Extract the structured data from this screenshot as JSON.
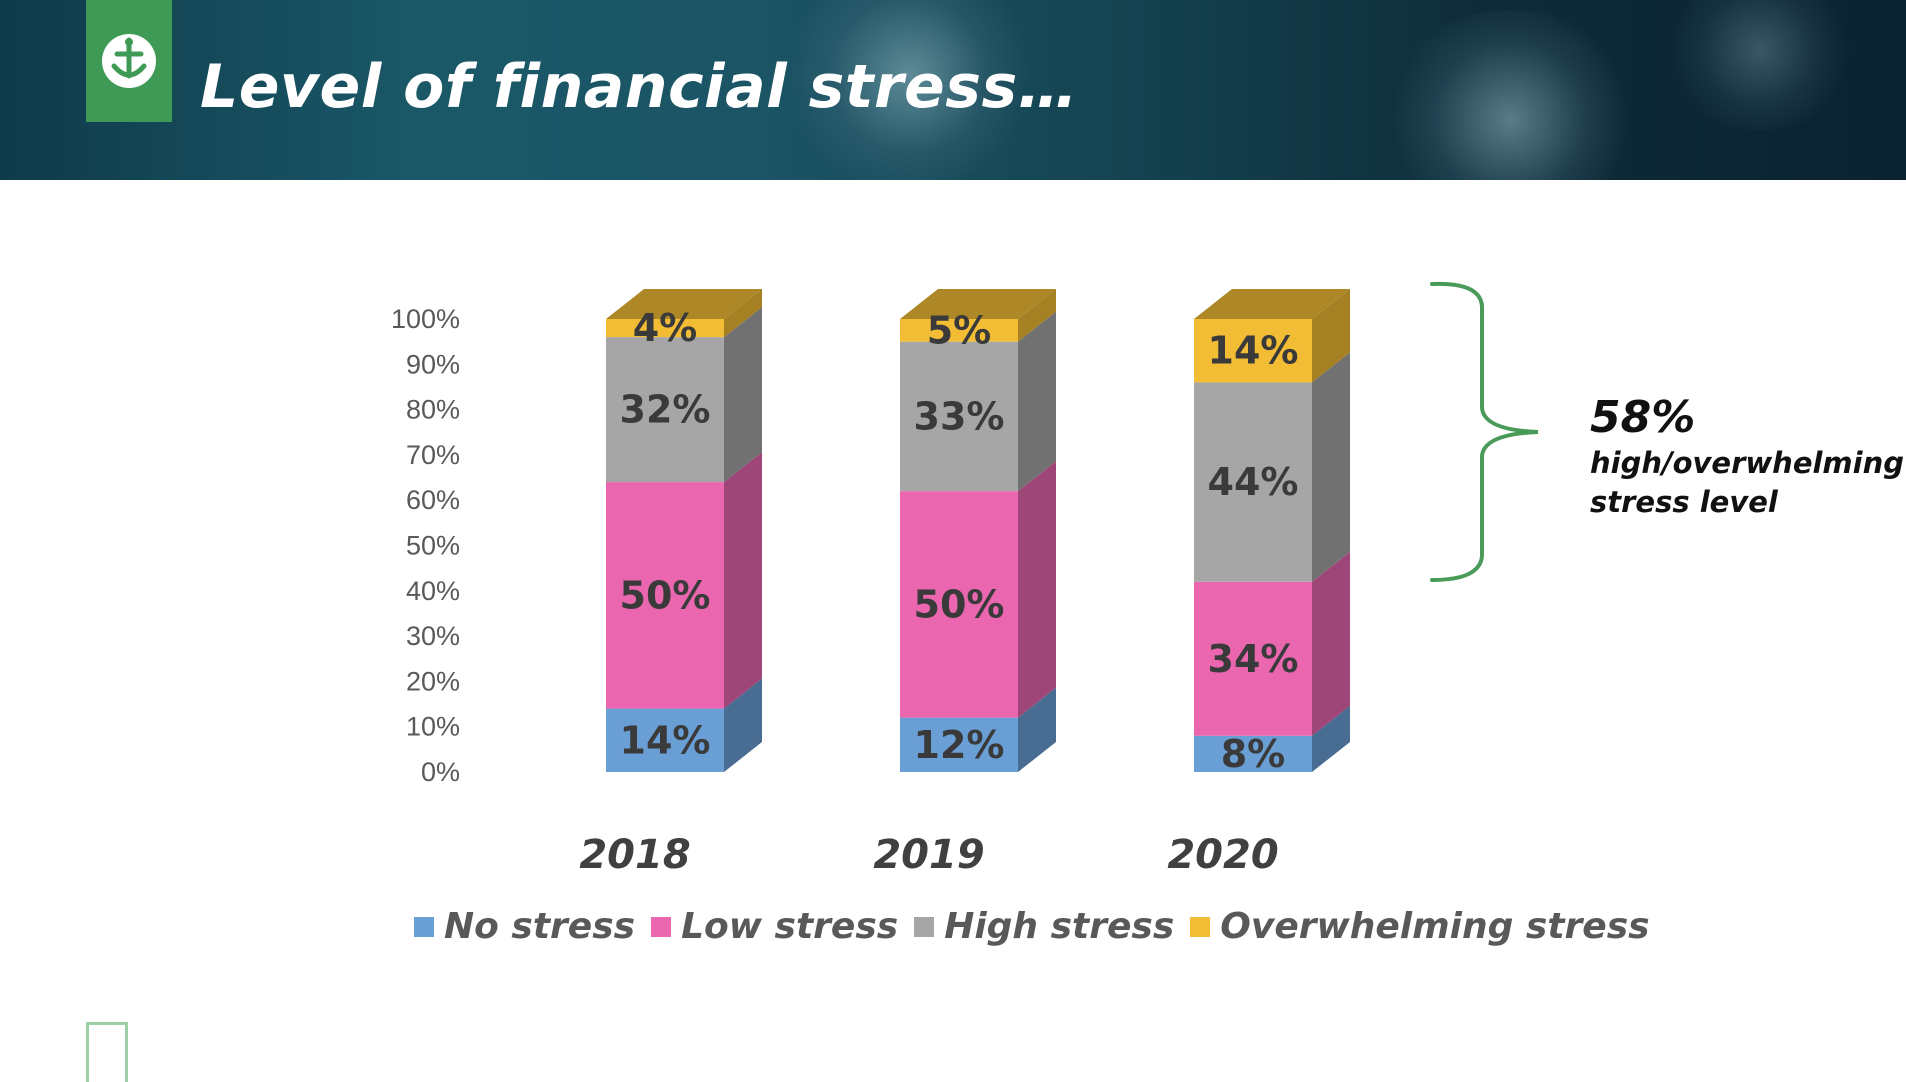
{
  "slide": {
    "title": "Level of financial stress…",
    "annotation_value": "58%",
    "annotation_text": "high/overwhelming stress level"
  },
  "colors": {
    "no_stress": "#6a9fd6",
    "low_stress": "#ea67b0",
    "high_stress": "#a6a6a6",
    "overwhelming_stress": "#f2bd35",
    "brace": "#4a9a5a",
    "banner": "#1a5868",
    "logo_bg": "#3f9a55"
  },
  "chart_data": {
    "type": "bar",
    "stacked": true,
    "style": "3d",
    "categories": [
      "2018",
      "2019",
      "2020"
    ],
    "series": [
      {
        "name": "No stress",
        "values": [
          14,
          12,
          8
        ],
        "labels": [
          "14%",
          "12%",
          "8%"
        ]
      },
      {
        "name": "Low stress",
        "values": [
          50,
          50,
          34
        ],
        "labels": [
          "50%",
          "50%",
          "34%"
        ]
      },
      {
        "name": "High stress",
        "values": [
          32,
          33,
          44
        ],
        "labels": [
          "32%",
          "33%",
          "44%"
        ]
      },
      {
        "name": "Overwhelming stress",
        "values": [
          4,
          5,
          14
        ],
        "labels": [
          "4%",
          "5%",
          "14%"
        ]
      }
    ],
    "yticks": [
      "0%",
      "10%",
      "20%",
      "30%",
      "40%",
      "50%",
      "60%",
      "70%",
      "80%",
      "90%",
      "100%"
    ],
    "ylim": [
      0,
      100
    ],
    "legend_position": "bottom",
    "grid": false
  }
}
